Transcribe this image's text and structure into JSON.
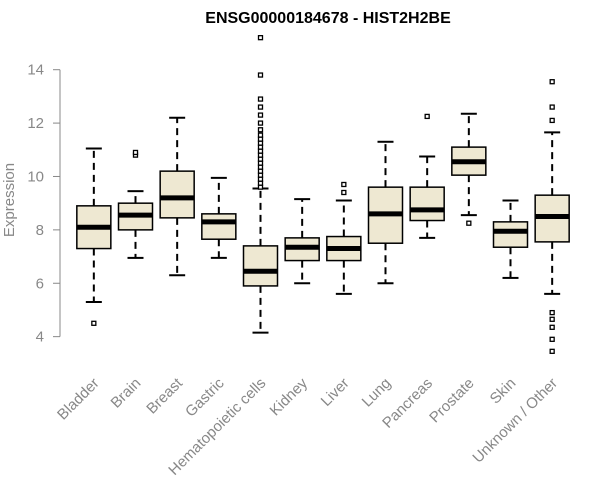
{
  "chart_data": {
    "type": "boxplot",
    "title": "ENSG00000184678 - HIST2H2BE",
    "xlabel": "",
    "ylabel": "Expression",
    "ylim": [
      3.2,
      15.3
    ],
    "yticks": [
      4,
      6,
      8,
      10,
      12,
      14
    ],
    "grid": false,
    "box_color": "#EEE8D2",
    "categories": [
      "Bladder",
      "Brain",
      "Breast",
      "Gastric",
      "Hematopoietic cells",
      "Kidney",
      "Liver",
      "Lung",
      "Pancreas",
      "Prostate",
      "Skin",
      "Unknown / Other"
    ],
    "boxes": [
      {
        "min": 5.3,
        "q1": 7.3,
        "median": 8.1,
        "q3": 8.9,
        "max": 11.05,
        "outliers": [
          4.5
        ]
      },
      {
        "min": 6.95,
        "q1": 8.0,
        "median": 8.55,
        "q3": 9.0,
        "max": 9.45,
        "outliers": [
          10.8,
          10.9
        ]
      },
      {
        "min": 6.3,
        "q1": 8.45,
        "median": 9.2,
        "q3": 10.2,
        "max": 12.2,
        "outliers": []
      },
      {
        "min": 6.95,
        "q1": 7.65,
        "median": 8.3,
        "q3": 8.6,
        "max": 9.95,
        "outliers": []
      },
      {
        "min": 4.15,
        "q1": 5.9,
        "median": 6.45,
        "q3": 7.4,
        "max": 9.55,
        "outliers": [
          9.6,
          9.75,
          9.9,
          10.05,
          10.2,
          10.35,
          10.5,
          10.65,
          10.8,
          10.95,
          11.1,
          11.25,
          11.4,
          11.55,
          11.75,
          12.0,
          12.3,
          12.6,
          12.9,
          13.8,
          15.2
        ]
      },
      {
        "min": 6.0,
        "q1": 6.85,
        "median": 7.35,
        "q3": 7.7,
        "max": 9.15,
        "outliers": []
      },
      {
        "min": 5.6,
        "q1": 6.85,
        "median": 7.3,
        "q3": 7.75,
        "max": 9.1,
        "outliers": [
          9.4,
          9.7
        ]
      },
      {
        "min": 6.0,
        "q1": 7.5,
        "median": 8.6,
        "q3": 9.6,
        "max": 11.3,
        "outliers": []
      },
      {
        "min": 7.7,
        "q1": 8.35,
        "median": 8.75,
        "q3": 9.6,
        "max": 10.75,
        "outliers": [
          12.25
        ]
      },
      {
        "min": 8.55,
        "q1": 10.05,
        "median": 10.55,
        "q3": 11.1,
        "max": 12.35,
        "outliers": [
          8.25
        ]
      },
      {
        "min": 6.2,
        "q1": 7.35,
        "median": 7.95,
        "q3": 8.3,
        "max": 9.1,
        "outliers": []
      },
      {
        "min": 5.6,
        "q1": 7.55,
        "median": 8.5,
        "q3": 9.3,
        "max": 11.65,
        "outliers": [
          3.45,
          3.9,
          4.35,
          4.65,
          4.9,
          12.1,
          12.6,
          13.55
        ]
      }
    ]
  }
}
